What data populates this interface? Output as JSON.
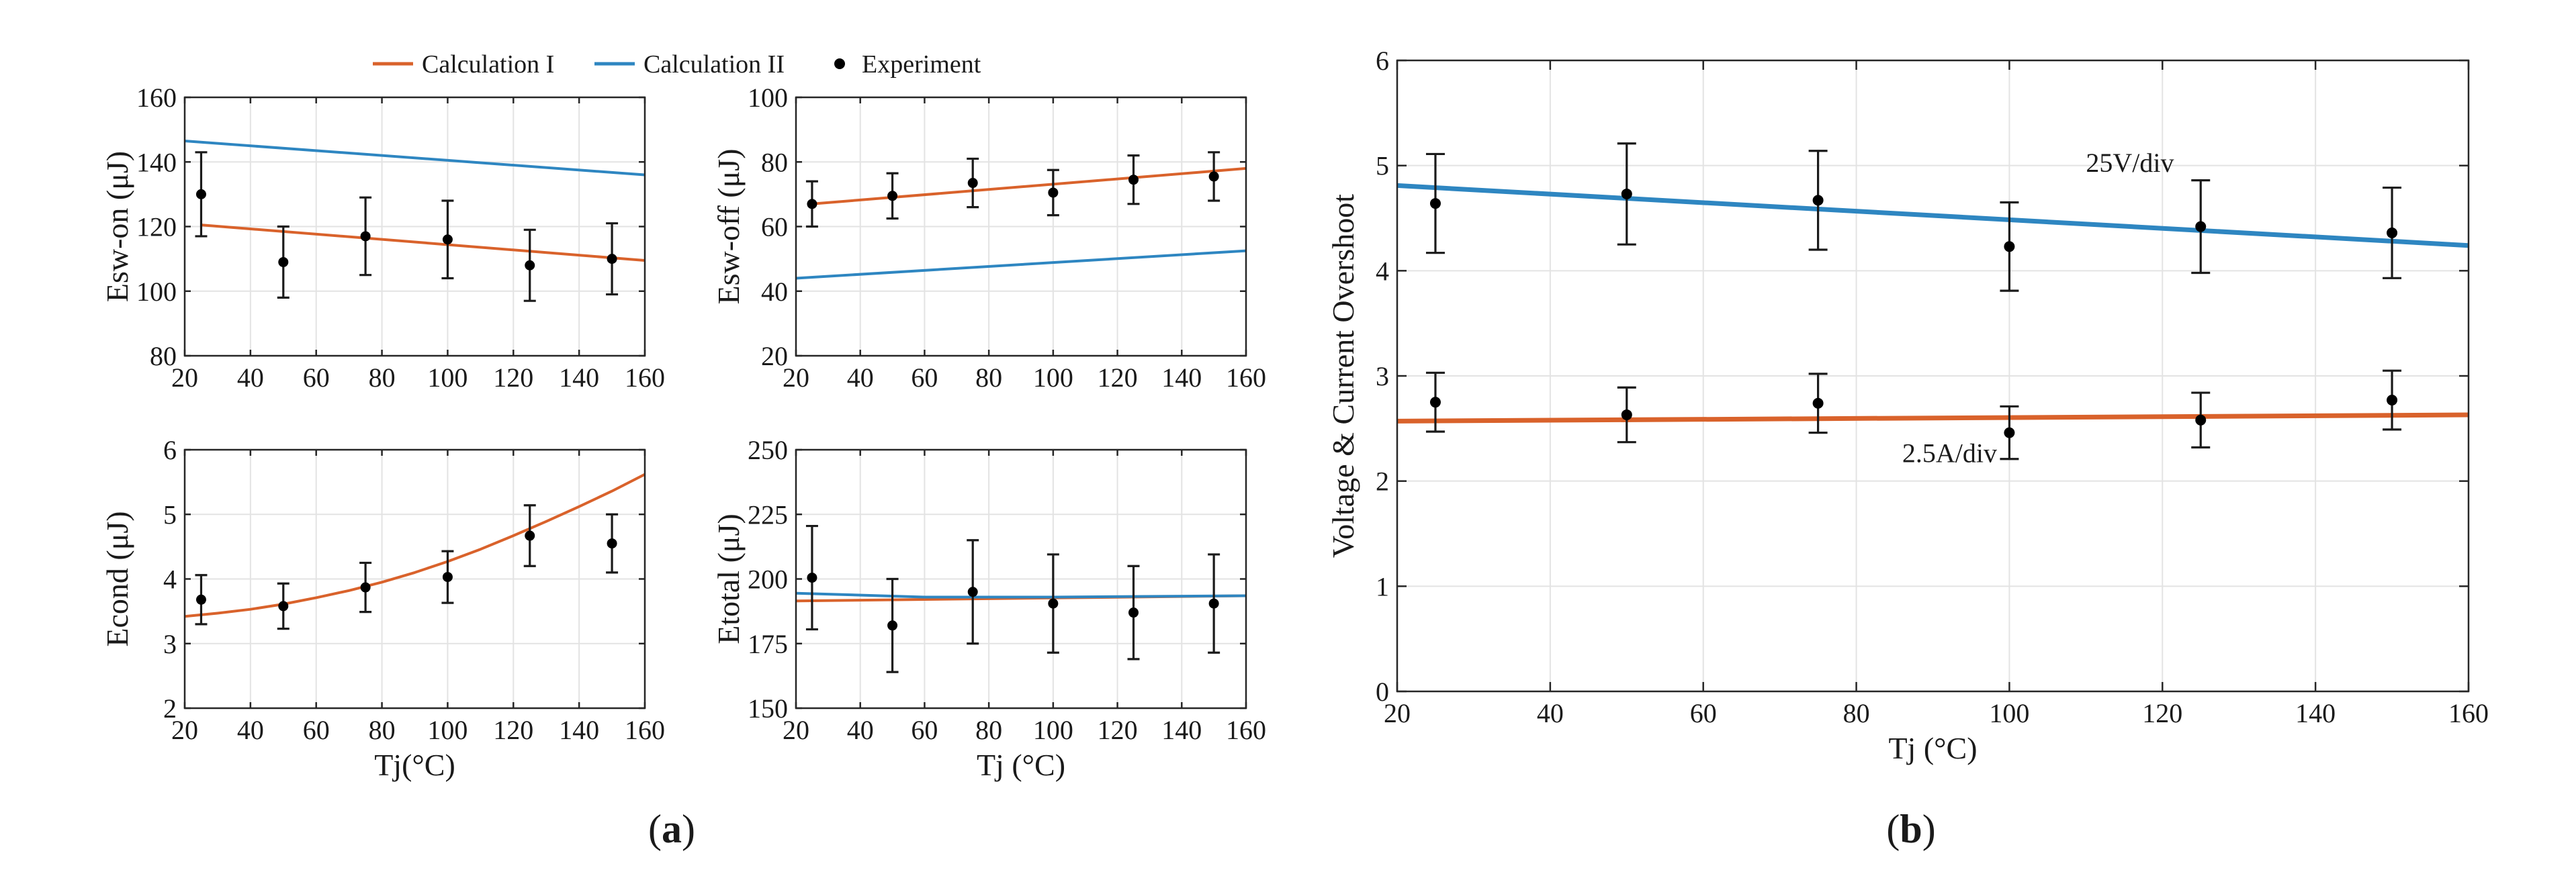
{
  "legend": {
    "items": [
      {
        "label": "Calculation I",
        "color": "#D9622B",
        "kind": "line"
      },
      {
        "label": "Calculation II",
        "color": "#2E86C1",
        "kind": "line"
      },
      {
        "label": "Experiment",
        "color": "#000000",
        "kind": "dot"
      }
    ]
  },
  "captions": {
    "a": {
      "open": "(",
      "letter": "a",
      "close": ")"
    },
    "b": {
      "open": "(",
      "letter": "b",
      "close": ")"
    }
  },
  "colors": {
    "calc1": "#D9622B",
    "calc2": "#2E86C1",
    "exp": "#000000",
    "grid": "#e3e3e3",
    "axis": "#262626"
  },
  "chart_data": [
    {
      "id": "esw_on",
      "type": "line",
      "xlabel": "",
      "ylabel": "Esw-on (μJ)",
      "xlim": [
        20,
        160
      ],
      "ylim": [
        80,
        160
      ],
      "xticks": [
        20,
        40,
        60,
        80,
        100,
        120,
        140,
        160
      ],
      "yticks": [
        80,
        100,
        120,
        140,
        160
      ],
      "series": [
        {
          "name": "Calculation I",
          "color": "#D9622B",
          "x": [
            25,
            160
          ],
          "y": [
            120.5,
            109.5
          ]
        },
        {
          "name": "Calculation II",
          "color": "#2E86C1",
          "x": [
            20,
            160
          ],
          "y": [
            146.5,
            136
          ]
        }
      ],
      "experiment": {
        "x": [
          25,
          50,
          75,
          100,
          125,
          150
        ],
        "y": [
          130,
          109,
          117,
          116,
          108,
          110
        ],
        "err": [
          13,
          11,
          12,
          12,
          11,
          11
        ]
      }
    },
    {
      "id": "esw_off",
      "type": "line",
      "xlabel": "",
      "ylabel": "Esw-off (μJ)",
      "xlim": [
        20,
        160
      ],
      "ylim": [
        20,
        100
      ],
      "xticks": [
        20,
        40,
        60,
        80,
        100,
        120,
        140,
        160
      ],
      "yticks": [
        20,
        40,
        60,
        80,
        100
      ],
      "series": [
        {
          "name": "Calculation I",
          "color": "#D9622B",
          "x": [
            25,
            160
          ],
          "y": [
            67,
            78
          ]
        },
        {
          "name": "Calculation II",
          "color": "#2E86C1",
          "x": [
            20,
            160
          ],
          "y": [
            44,
            52.5
          ]
        }
      ],
      "experiment": {
        "x": [
          25,
          50,
          75,
          100,
          125,
          150
        ],
        "y": [
          67,
          69.5,
          73.5,
          70.5,
          74.5,
          75.5
        ],
        "err": [
          7,
          7,
          7.5,
          7,
          7.5,
          7.5
        ]
      }
    },
    {
      "id": "econd",
      "type": "line",
      "xlabel": "Tj(°C)",
      "ylabel": "Econd (μJ)",
      "xlim": [
        20,
        160
      ],
      "ylim": [
        2,
        6
      ],
      "xticks": [
        20,
        40,
        60,
        80,
        100,
        120,
        140,
        160
      ],
      "yticks": [
        2,
        3,
        4,
        5,
        6
      ],
      "series": [
        {
          "name": "Calculation I",
          "color": "#D9622B",
          "x": [
            20,
            30,
            40,
            50,
            60,
            70,
            80,
            90,
            100,
            110,
            120,
            130,
            140,
            150,
            160
          ],
          "y": [
            3.42,
            3.47,
            3.53,
            3.61,
            3.71,
            3.82,
            3.95,
            4.1,
            4.27,
            4.46,
            4.67,
            4.89,
            5.12,
            5.36,
            5.62
          ]
        }
      ],
      "experiment": {
        "x": [
          25,
          50,
          75,
          100,
          125,
          150
        ],
        "y": [
          3.68,
          3.58,
          3.87,
          4.03,
          4.67,
          4.55
        ],
        "err": [
          0.38,
          0.35,
          0.38,
          0.4,
          0.47,
          0.45
        ]
      }
    },
    {
      "id": "etotal",
      "type": "line",
      "xlabel": "Tj (°C)",
      "ylabel": "Etotal (μJ)",
      "xlim": [
        20,
        160
      ],
      "ylim": [
        150,
        250
      ],
      "xticks": [
        20,
        40,
        60,
        80,
        100,
        120,
        140,
        160
      ],
      "yticks": [
        150,
        175,
        200,
        225,
        250
      ],
      "series": [
        {
          "name": "Calculation I",
          "color": "#D9622B",
          "x": [
            20,
            160
          ],
          "y": [
            191.5,
            193.5
          ]
        },
        {
          "name": "Calculation II",
          "color": "#2E86C1",
          "x": [
            20,
            60,
            100,
            160
          ],
          "y": [
            194.5,
            193,
            193,
            193.5
          ]
        }
      ],
      "experiment": {
        "x": [
          25,
          50,
          75,
          100,
          125,
          150
        ],
        "y": [
          200.5,
          182,
          195,
          190.5,
          187,
          190.5
        ],
        "err": [
          20,
          18,
          20,
          19,
          18,
          19
        ]
      }
    },
    {
      "id": "overshoot",
      "type": "line",
      "xlabel": "Tj (°C)",
      "ylabel": "Voltage & Current Overshoot",
      "xlim": [
        20,
        160
      ],
      "ylim": [
        0,
        6
      ],
      "xticks": [
        20,
        40,
        60,
        80,
        100,
        120,
        140,
        160
      ],
      "yticks": [
        0,
        1,
        2,
        3,
        4,
        5,
        6
      ],
      "series": [
        {
          "name": "Voltage overshoot (25V/div)",
          "color": "#2E86C1",
          "x": [
            20,
            160
          ],
          "y": [
            4.81,
            4.24
          ]
        },
        {
          "name": "Current overshoot (2.5A/div)",
          "color": "#D9622B",
          "x": [
            20,
            160
          ],
          "y": [
            2.57,
            2.63
          ]
        }
      ],
      "experiment_sets": [
        {
          "x": [
            25,
            50,
            75,
            100,
            125,
            150
          ],
          "y": [
            4.64,
            4.73,
            4.67,
            4.23,
            4.42,
            4.36
          ],
          "err": [
            0.47,
            0.48,
            0.47,
            0.42,
            0.44,
            0.43
          ]
        },
        {
          "x": [
            25,
            50,
            75,
            100,
            125,
            150
          ],
          "y": [
            2.75,
            2.63,
            2.74,
            2.46,
            2.58,
            2.77
          ],
          "err": [
            0.28,
            0.26,
            0.28,
            0.25,
            0.26,
            0.28
          ]
        }
      ],
      "annotations": [
        {
          "text": "25V/div",
          "x": 110,
          "y": 4.94
        },
        {
          "text": "2.5A/div",
          "x": 86,
          "y": 2.18
        }
      ]
    }
  ]
}
